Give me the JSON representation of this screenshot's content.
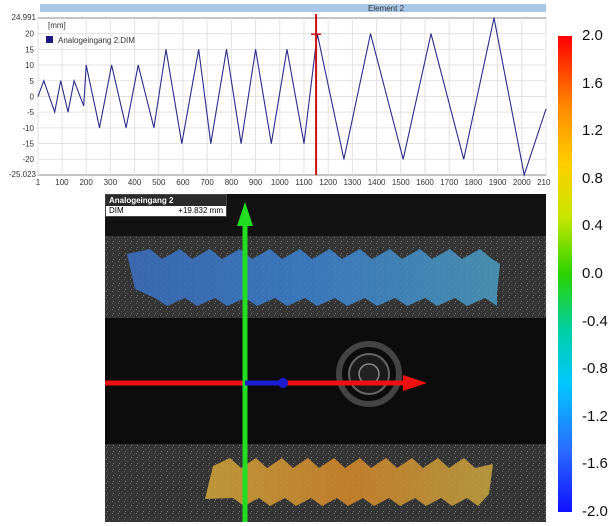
{
  "chart": {
    "top_bar_label": "Element 2",
    "y_unit": "[mm]",
    "y_max_label": "24.991",
    "y_min_label": "-25.023",
    "series_color": "#2b2b8c",
    "cursor_color": "#cc1111"
  },
  "chart_data": {
    "type": "line",
    "title": "",
    "ylabel": "[mm]",
    "xlabel": "",
    "ylim": [
      -25.023,
      24.991
    ],
    "xlim": [
      1,
      2100
    ],
    "y_ticks": [
      "20",
      "15",
      "10",
      "5",
      "0",
      "-5",
      "-10",
      "-15",
      "-20"
    ],
    "x_ticks": [
      "1",
      "100",
      "200",
      "300",
      "400",
      "500",
      "600",
      "700",
      "800",
      "900",
      "1000",
      "1100",
      "1200",
      "1300",
      "1400",
      "1500",
      "1600",
      "1700",
      "1800",
      "1900",
      "2000",
      "2100"
    ],
    "legend_placement": "top-left",
    "grid": true,
    "cursor_x": 1150,
    "series": [
      {
        "name": "Analogeingang 2.DIM",
        "x": [
          1,
          25,
          70,
          95,
          125,
          150,
          190,
          200,
          255,
          305,
          365,
          415,
          480,
          530,
          595,
          665,
          715,
          780,
          840,
          900,
          965,
          1030,
          1100,
          1155,
          1265,
          1375,
          1510,
          1625,
          1760,
          1885,
          2010,
          2100
        ],
        "y": [
          0,
          5,
          -5,
          5,
          -5,
          5,
          -3,
          10,
          -10,
          10,
          -10,
          10,
          -10,
          15,
          -15,
          15,
          -15,
          15,
          -15,
          15,
          -15,
          15,
          -15,
          20,
          -20,
          20,
          -20,
          20,
          -20,
          25,
          -25,
          -4
        ]
      }
    ]
  },
  "view": {
    "readout_title": "Analogeingang 2",
    "readout_label": "DIM",
    "readout_value": "+19.832 mm",
    "x_axis_color": "#ee1111",
    "y_axis_color": "#22dd22"
  },
  "colorbar": {
    "labels": [
      "2.0",
      "1.6",
      "1.2",
      "0.8",
      "0.4",
      "0.0",
      "-0.4",
      "-0.8",
      "-1.2",
      "-1.6",
      "-2.0"
    ]
  }
}
